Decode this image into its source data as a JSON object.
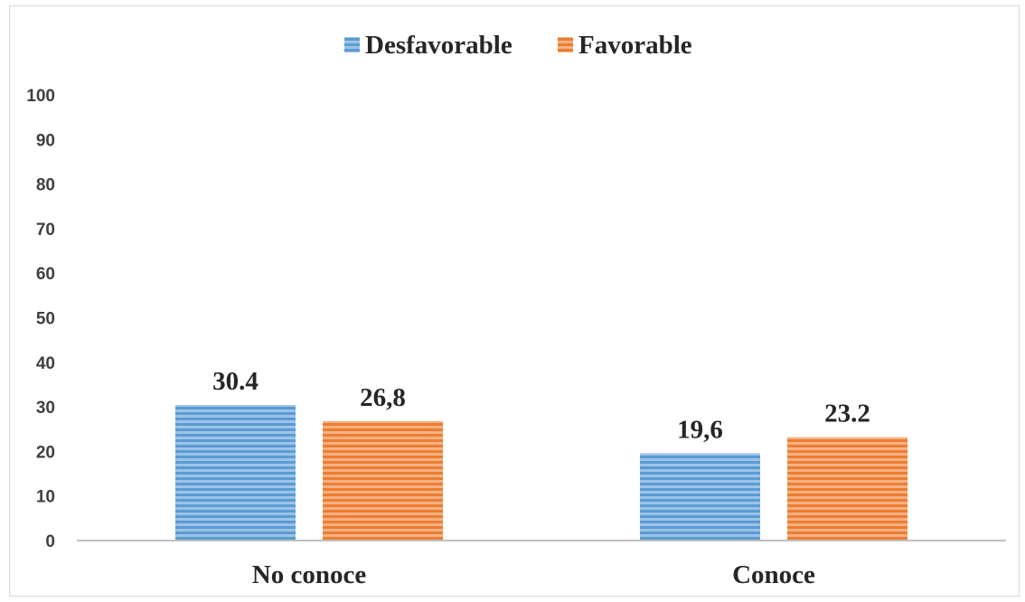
{
  "chart_data": {
    "type": "bar",
    "categories": [
      "No conoce",
      "Conoce"
    ],
    "series": [
      {
        "name": "Desfavorable",
        "values": [
          30.4,
          19.6
        ],
        "labels": [
          "30.4",
          "19,6"
        ],
        "color": "#5b9bd5"
      },
      {
        "name": "Favorable",
        "values": [
          26.8,
          23.2
        ],
        "labels": [
          "26,8",
          "23.2"
        ],
        "color": "#ed7d31"
      }
    ],
    "ylim": [
      0,
      100
    ],
    "yticks": [
      "0",
      "10",
      "20",
      "30",
      "40",
      "50",
      "60",
      "70",
      "80",
      "90",
      "100"
    ],
    "legend_position": "top-center",
    "grid": false
  }
}
